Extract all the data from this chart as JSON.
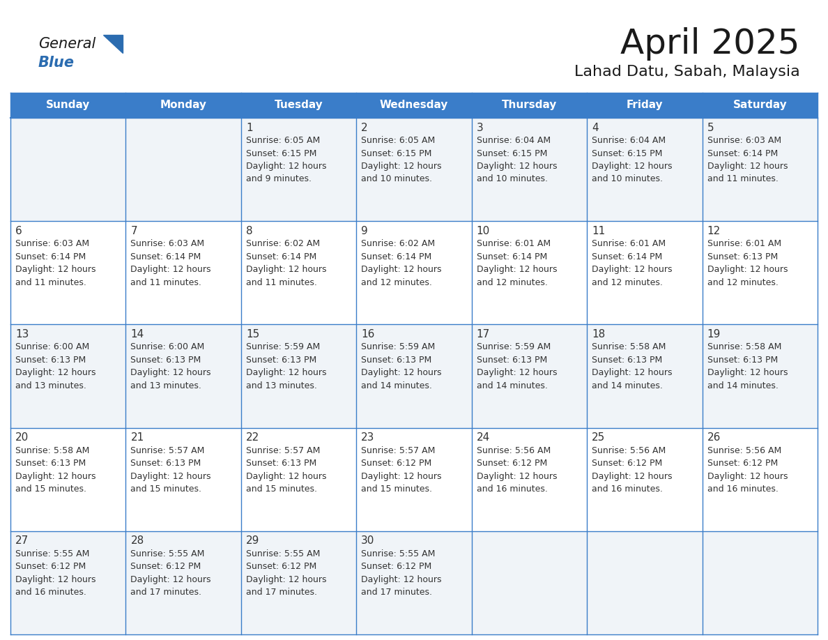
{
  "title": "April 2025",
  "subtitle": "Lahad Datu, Sabah, Malaysia",
  "days_of_week": [
    "Sunday",
    "Monday",
    "Tuesday",
    "Wednesday",
    "Thursday",
    "Friday",
    "Saturday"
  ],
  "header_bg": "#3A7DC9",
  "header_text": "#FFFFFF",
  "cell_bg_odd": "#F0F4F8",
  "cell_bg_even": "#FFFFFF",
  "cell_border": "#3A7DC9",
  "text_color": "#333333",
  "title_color": "#1a1a1a",
  "logo_general_color": "#1a1a1a",
  "logo_blue_color": "#2B6CB0",
  "calendar_data": [
    [
      {
        "day": null,
        "sunrise": null,
        "sunset": null,
        "daylight_suffix": null
      },
      {
        "day": null,
        "sunrise": null,
        "sunset": null,
        "daylight_suffix": null
      },
      {
        "day": 1,
        "sunrise": "6:05 AM",
        "sunset": "6:15 PM",
        "daylight_suffix": "and 9 minutes."
      },
      {
        "day": 2,
        "sunrise": "6:05 AM",
        "sunset": "6:15 PM",
        "daylight_suffix": "and 10 minutes."
      },
      {
        "day": 3,
        "sunrise": "6:04 AM",
        "sunset": "6:15 PM",
        "daylight_suffix": "and 10 minutes."
      },
      {
        "day": 4,
        "sunrise": "6:04 AM",
        "sunset": "6:15 PM",
        "daylight_suffix": "and 10 minutes."
      },
      {
        "day": 5,
        "sunrise": "6:03 AM",
        "sunset": "6:14 PM",
        "daylight_suffix": "and 11 minutes."
      }
    ],
    [
      {
        "day": 6,
        "sunrise": "6:03 AM",
        "sunset": "6:14 PM",
        "daylight_suffix": "and 11 minutes."
      },
      {
        "day": 7,
        "sunrise": "6:03 AM",
        "sunset": "6:14 PM",
        "daylight_suffix": "and 11 minutes."
      },
      {
        "day": 8,
        "sunrise": "6:02 AM",
        "sunset": "6:14 PM",
        "daylight_suffix": "and 11 minutes."
      },
      {
        "day": 9,
        "sunrise": "6:02 AM",
        "sunset": "6:14 PM",
        "daylight_suffix": "and 12 minutes."
      },
      {
        "day": 10,
        "sunrise": "6:01 AM",
        "sunset": "6:14 PM",
        "daylight_suffix": "and 12 minutes."
      },
      {
        "day": 11,
        "sunrise": "6:01 AM",
        "sunset": "6:14 PM",
        "daylight_suffix": "and 12 minutes."
      },
      {
        "day": 12,
        "sunrise": "6:01 AM",
        "sunset": "6:13 PM",
        "daylight_suffix": "and 12 minutes."
      }
    ],
    [
      {
        "day": 13,
        "sunrise": "6:00 AM",
        "sunset": "6:13 PM",
        "daylight_suffix": "and 13 minutes."
      },
      {
        "day": 14,
        "sunrise": "6:00 AM",
        "sunset": "6:13 PM",
        "daylight_suffix": "and 13 minutes."
      },
      {
        "day": 15,
        "sunrise": "5:59 AM",
        "sunset": "6:13 PM",
        "daylight_suffix": "and 13 minutes."
      },
      {
        "day": 16,
        "sunrise": "5:59 AM",
        "sunset": "6:13 PM",
        "daylight_suffix": "and 14 minutes."
      },
      {
        "day": 17,
        "sunrise": "5:59 AM",
        "sunset": "6:13 PM",
        "daylight_suffix": "and 14 minutes."
      },
      {
        "day": 18,
        "sunrise": "5:58 AM",
        "sunset": "6:13 PM",
        "daylight_suffix": "and 14 minutes."
      },
      {
        "day": 19,
        "sunrise": "5:58 AM",
        "sunset": "6:13 PM",
        "daylight_suffix": "and 14 minutes."
      }
    ],
    [
      {
        "day": 20,
        "sunrise": "5:58 AM",
        "sunset": "6:13 PM",
        "daylight_suffix": "and 15 minutes."
      },
      {
        "day": 21,
        "sunrise": "5:57 AM",
        "sunset": "6:13 PM",
        "daylight_suffix": "and 15 minutes."
      },
      {
        "day": 22,
        "sunrise": "5:57 AM",
        "sunset": "6:13 PM",
        "daylight_suffix": "and 15 minutes."
      },
      {
        "day": 23,
        "sunrise": "5:57 AM",
        "sunset": "6:12 PM",
        "daylight_suffix": "and 15 minutes."
      },
      {
        "day": 24,
        "sunrise": "5:56 AM",
        "sunset": "6:12 PM",
        "daylight_suffix": "and 16 minutes."
      },
      {
        "day": 25,
        "sunrise": "5:56 AM",
        "sunset": "6:12 PM",
        "daylight_suffix": "and 16 minutes."
      },
      {
        "day": 26,
        "sunrise": "5:56 AM",
        "sunset": "6:12 PM",
        "daylight_suffix": "and 16 minutes."
      }
    ],
    [
      {
        "day": 27,
        "sunrise": "5:55 AM",
        "sunset": "6:12 PM",
        "daylight_suffix": "and 16 minutes."
      },
      {
        "day": 28,
        "sunrise": "5:55 AM",
        "sunset": "6:12 PM",
        "daylight_suffix": "and 17 minutes."
      },
      {
        "day": 29,
        "sunrise": "5:55 AM",
        "sunset": "6:12 PM",
        "daylight_suffix": "and 17 minutes."
      },
      {
        "day": 30,
        "sunrise": "5:55 AM",
        "sunset": "6:12 PM",
        "daylight_suffix": "and 17 minutes."
      },
      {
        "day": null,
        "sunrise": null,
        "sunset": null,
        "daylight_suffix": null
      },
      {
        "day": null,
        "sunrise": null,
        "sunset": null,
        "daylight_suffix": null
      },
      {
        "day": null,
        "sunrise": null,
        "sunset": null,
        "daylight_suffix": null
      }
    ]
  ]
}
